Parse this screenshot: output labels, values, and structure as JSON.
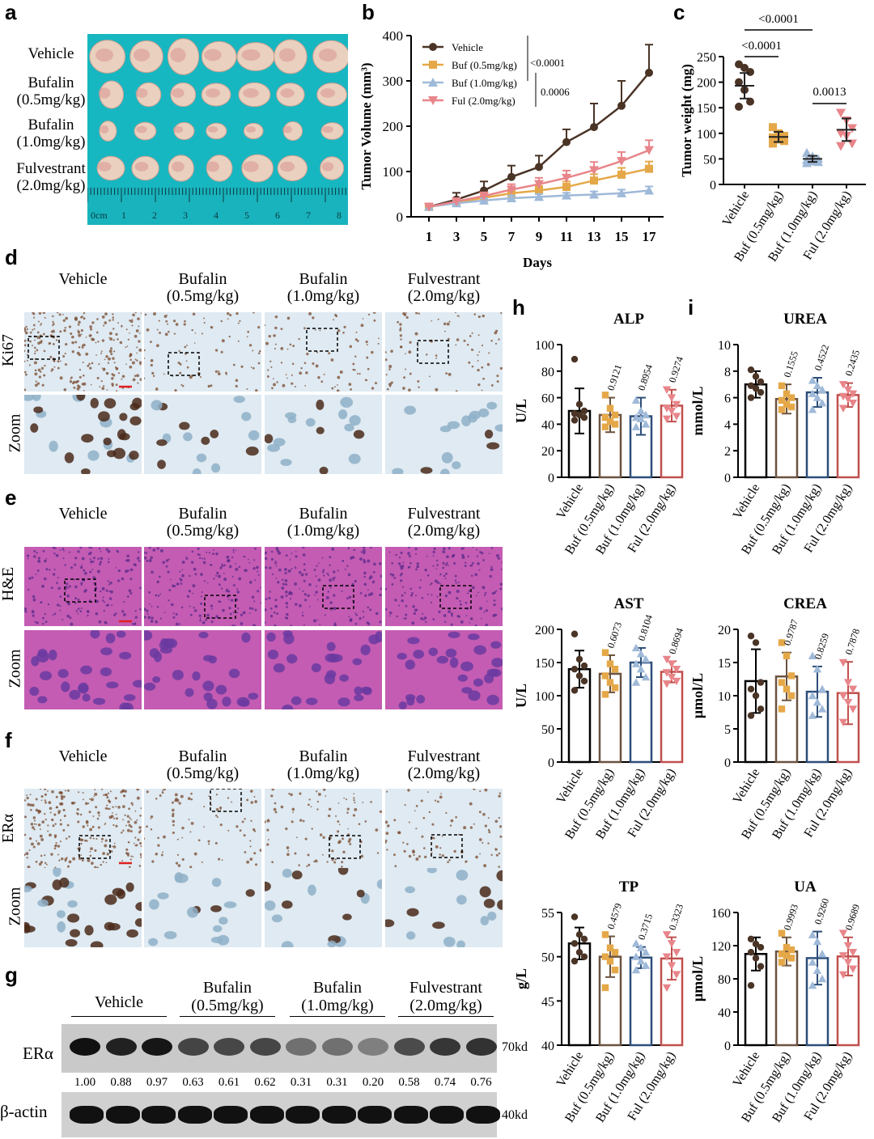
{
  "panels": {
    "a": "a",
    "b": "b",
    "c": "c",
    "d": "d",
    "e": "e",
    "f": "f",
    "g": "g",
    "h": "h",
    "i": "i"
  },
  "panel_a": {
    "rows": [
      {
        "line1": "Vehicle",
        "line2": ""
      },
      {
        "line1": "Bufalin",
        "line2": "(0.5mg/kg)"
      },
      {
        "line1": "Bufalin",
        "line2": "(1.0mg/kg)"
      },
      {
        "line1": "Fulvestrant",
        "line2": "(2.0mg/kg)"
      }
    ],
    "ruler_labels": [
      "0cm",
      "1",
      "2",
      "3",
      "4",
      "5",
      "6",
      "7",
      "8"
    ]
  },
  "histology": {
    "groups": [
      {
        "line1": "Vehicle",
        "line2": ""
      },
      {
        "line1": "Bufalin",
        "line2": "(0.5mg/kg)"
      },
      {
        "line1": "Bufalin",
        "line2": "(1.0mg/kg)"
      },
      {
        "line1": "Fulvestrant",
        "line2": "(2.0mg/kg)"
      }
    ],
    "d_row": "Ki67",
    "e_row": "H&E",
    "f_row": "ERα",
    "zoom": "Zoom",
    "colors": {
      "ihc_bg": "#dfeaf2",
      "ihc_dot": "#7a4a2e",
      "he_bg": "#c45cb3",
      "he_dot": "#5a2a8a"
    }
  },
  "western": {
    "groups": [
      {
        "line1": "Vehicle",
        "line2": ""
      },
      {
        "line1": "Bufalin",
        "line2": "(0.5mg/kg)"
      },
      {
        "line1": "Bufalin",
        "line2": "(1.0mg/kg)"
      },
      {
        "line1": "Fulvestrant",
        "line2": "(2.0mg/kg)"
      }
    ],
    "era_label": "ERα",
    "actin_label": "β-actin",
    "era_kd": "70kd",
    "actin_kd": "40kd",
    "ratios": [
      "1.00",
      "0.88",
      "0.97",
      "0.63",
      "0.61",
      "0.62",
      "0.31",
      "0.31",
      "0.20",
      "0.58",
      "0.74",
      "0.76"
    ]
  },
  "colors": {
    "vehicle": "#4a3426",
    "buf05": "#e5a848",
    "buf10": "#9fb9d8",
    "ful": "#e8858a",
    "bar_veh": "#000000",
    "bar_b05": "#6b5340",
    "bar_b10": "#2d4e7a",
    "bar_ful": "#c0504d"
  },
  "chart_data": [
    {
      "id": "b",
      "type": "line",
      "xlabel": "Days",
      "ylabel": "Tumor Volume (mm³)",
      "x": [
        1,
        3,
        5,
        7,
        9,
        11,
        13,
        15,
        17
      ],
      "ylim": [
        0,
        400
      ],
      "yticks": [
        0,
        100,
        200,
        300,
        400
      ],
      "series": [
        {
          "name": "Vehicle",
          "values": [
            22,
            38,
            58,
            88,
            110,
            165,
            198,
            245,
            318
          ]
        },
        {
          "name": "Buf (0.5mg/kg)",
          "values": [
            22,
            32,
            42,
            52,
            58,
            66,
            80,
            93,
            106
          ]
        },
        {
          "name": "Buf (1.0mg/kg)",
          "values": [
            22,
            30,
            36,
            41,
            44,
            47,
            49,
            52,
            58
          ]
        },
        {
          "name": "Ful (2.0mg/kg)",
          "values": [
            22,
            34,
            46,
            60,
            72,
            86,
            103,
            123,
            147
          ]
        }
      ],
      "annotations": [
        "<0.0001",
        "0.0006"
      ]
    },
    {
      "id": "c",
      "type": "scatter",
      "ylabel": "Tumor weight (mg)",
      "ylim": [
        0,
        250
      ],
      "yticks": [
        0,
        50,
        100,
        150,
        200,
        250
      ],
      "categories": [
        "Vehicle",
        "Buf (0.5mg/kg)",
        "Buf (1.0mg/kg)",
        "Ful (2.0mg/kg)"
      ],
      "means": [
        193,
        93,
        50,
        107
      ],
      "points": [
        [
          235,
          228,
          220,
          200,
          185,
          162,
          152
        ],
        [
          112,
          100,
          95,
          92,
          88,
          85,
          80
        ],
        [
          62,
          55,
          50,
          48,
          45,
          44,
          42
        ],
        [
          140,
          125,
          110,
          100,
          95,
          80,
          75
        ]
      ],
      "comparisons": [
        "<0.0001",
        "<0.0001",
        "0.0013"
      ]
    },
    {
      "id": "ALP",
      "type": "bar",
      "title": "ALP",
      "ylabel": "U/L",
      "ylim": [
        0,
        100
      ],
      "yticks": [
        0,
        20,
        40,
        60,
        80,
        100
      ],
      "categories": [
        "Vehicle",
        "Buf (0.5mg/kg)",
        "Buf (1.0mg/kg)",
        "Ful (2.0mg/kg)"
      ],
      "values": [
        50,
        47,
        46,
        54
      ],
      "sd": [
        17,
        13,
        14,
        12
      ],
      "points": [
        [
          89,
          55,
          50,
          48,
          47,
          45,
          43
        ],
        [
          62,
          52,
          47,
          45,
          42,
          40,
          38
        ],
        [
          58,
          50,
          47,
          45,
          44,
          40,
          38
        ],
        [
          66,
          60,
          55,
          52,
          50,
          46,
          44
        ]
      ],
      "pvalues": [
        "",
        "0.9121",
        "0.8954",
        "0.9274"
      ]
    },
    {
      "id": "UREA",
      "type": "bar",
      "title": "UREA",
      "ylabel": "mmol/L",
      "ylim": [
        0,
        10
      ],
      "yticks": [
        0,
        2,
        4,
        6,
        8,
        10
      ],
      "categories": [
        "Vehicle",
        "Buf (0.5mg/kg)",
        "Buf (1.0mg/kg)",
        "Ful (2.0mg/kg)"
      ],
      "values": [
        7.0,
        5.9,
        6.4,
        6.2
      ],
      "sd": [
        1.0,
        1.1,
        1.1,
        0.9
      ],
      "points": [
        [
          8.1,
          7.6,
          7.2,
          6.9,
          6.7,
          6.4,
          6.0
        ],
        [
          6.9,
          6.3,
          6.0,
          5.8,
          5.5,
          5.3,
          5.1
        ],
        [
          7.3,
          6.9,
          6.6,
          6.3,
          6.0,
          5.6,
          5.1
        ],
        [
          7.0,
          6.6,
          6.3,
          6.1,
          5.9,
          5.6,
          5.2
        ]
      ],
      "pvalues": [
        "",
        "0.1555",
        "0.4522",
        "0.2435"
      ]
    },
    {
      "id": "AST",
      "type": "bar",
      "title": "AST",
      "ylabel": "U/L",
      "ylim": [
        0,
        200
      ],
      "yticks": [
        0,
        50,
        100,
        150,
        200
      ],
      "categories": [
        "Vehicle",
        "Buf (0.5mg/kg)",
        "Buf (1.0mg/kg)",
        "Ful (2.0mg/kg)"
      ],
      "values": [
        140,
        133,
        150,
        136
      ],
      "sd": [
        28,
        28,
        22,
        16
      ],
      "points": [
        [
          193,
          155,
          145,
          140,
          130,
          122,
          108
        ],
        [
          165,
          148,
          140,
          130,
          120,
          112,
          102
        ],
        [
          172,
          163,
          155,
          148,
          140,
          128,
          120
        ],
        [
          155,
          148,
          140,
          135,
          128,
          122,
          118
        ]
      ],
      "pvalues": [
        "",
        "0.6073",
        "0.8104",
        "0.8694"
      ]
    },
    {
      "id": "CREA",
      "type": "bar",
      "title": "CREA",
      "ylabel": "μmol/L",
      "ylim": [
        0,
        20
      ],
      "yticks": [
        0,
        5,
        10,
        15,
        20
      ],
      "categories": [
        "Vehicle",
        "Buf (0.5mg/kg)",
        "Buf (1.0mg/kg)",
        "Ful (2.0mg/kg)"
      ],
      "values": [
        12.2,
        12.9,
        10.6,
        10.4
      ],
      "sd": [
        4.8,
        3.6,
        3.8,
        4.7
      ],
      "points": [
        [
          19,
          18,
          12,
          11,
          10,
          8,
          7
        ],
        [
          18,
          16,
          13,
          12,
          11,
          10,
          8
        ],
        [
          16,
          14,
          11,
          10,
          9,
          8,
          7
        ],
        [
          15,
          12,
          11,
          10,
          9,
          8,
          6
        ]
      ],
      "pvalues": [
        "",
        "0.9787",
        "0.8259",
        "0.7878"
      ]
    },
    {
      "id": "TP",
      "type": "bar",
      "title": "TP",
      "ylabel": "g/L",
      "ylim": [
        40,
        55
      ],
      "yticks": [
        40,
        45,
        50,
        55
      ],
      "categories": [
        "Vehicle",
        "Buf (0.5mg/kg)",
        "Buf (1.0mg/kg)",
        "Ful (2.0mg/kg)"
      ],
      "values": [
        51.5,
        50.0,
        49.9,
        49.8
      ],
      "sd": [
        1.8,
        2.3,
        1.2,
        2.4
      ],
      "points": [
        [
          54.5,
          52.5,
          52,
          51.5,
          50.5,
          50,
          49.5
        ],
        [
          52.5,
          51,
          50.5,
          50,
          49.5,
          48.5,
          46.5
        ],
        [
          51.5,
          51,
          50.5,
          50,
          49.5,
          49,
          48.5
        ],
        [
          52.5,
          51.5,
          50.5,
          50,
          49,
          48,
          46.5
        ]
      ],
      "pvalues": [
        "",
        "0.4579",
        "0.3715",
        "0.3323"
      ]
    },
    {
      "id": "UA",
      "type": "bar",
      "title": "UA",
      "ylabel": "μmol/L",
      "ylim": [
        0,
        160
      ],
      "yticks": [
        0,
        40,
        80,
        120,
        160
      ],
      "categories": [
        "Vehicle",
        "Buf (0.5mg/kg)",
        "Buf (1.0mg/kg)",
        "Ful (2.0mg/kg)"
      ],
      "values": [
        110,
        113,
        105,
        107
      ],
      "sd": [
        20,
        17,
        32,
        23
      ],
      "points": [
        [
          128,
          122,
          118,
          112,
          105,
          95,
          72
        ],
        [
          135,
          118,
          115,
          110,
          108,
          105,
          100
        ],
        [
          133,
          125,
          110,
          100,
          90,
          80,
          72
        ],
        [
          135,
          120,
          112,
          108,
          100,
          92,
          85
        ]
      ],
      "pvalues": [
        "",
        "0.9993",
        "0.9260",
        "0.9689"
      ]
    }
  ]
}
